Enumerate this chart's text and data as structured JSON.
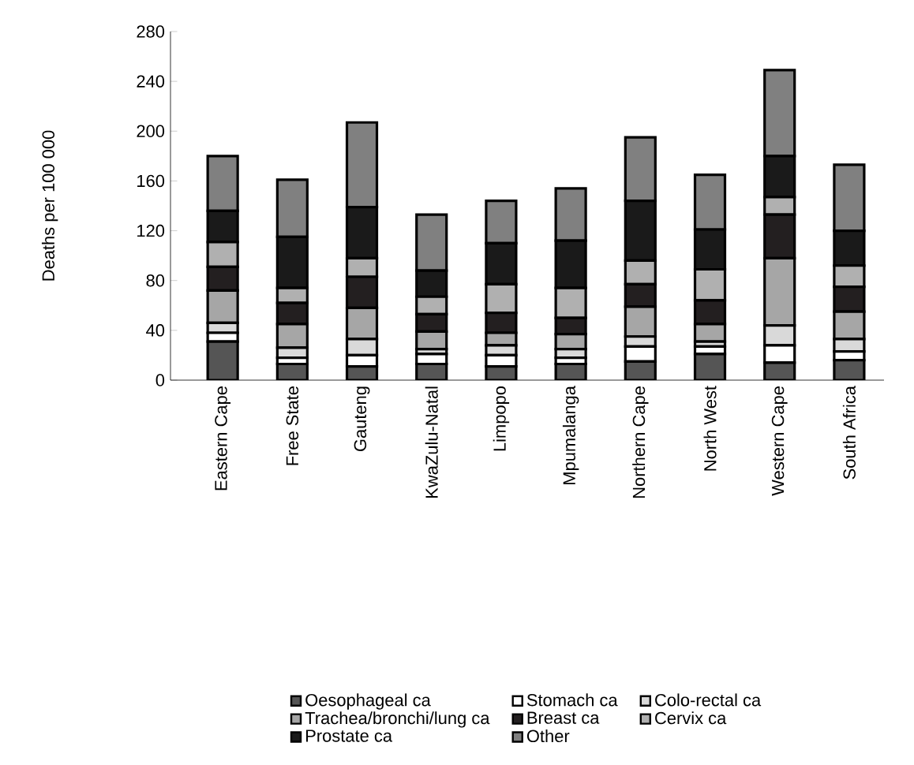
{
  "chart_data": {
    "type": "bar",
    "stacked": true,
    "ylabel": "Deaths per 100 000",
    "categories": [
      "Eastern Cape",
      "Free State",
      "Gauteng",
      "KwaZulu-Natal",
      "Limpopo",
      "Mpumalanga",
      "Northern Cape",
      "North West",
      "Western Cape",
      "South Africa"
    ],
    "series": [
      {
        "name": "Oesophageal ca",
        "color": "#555555",
        "values": [
          31,
          13,
          11,
          13,
          11,
          13,
          15,
          21,
          14,
          16
        ]
      },
      {
        "name": "Stomach ca",
        "color": "#ffffff",
        "values": [
          7,
          5,
          9,
          8,
          9,
          5,
          12,
          6,
          14,
          7
        ]
      },
      {
        "name": "Colo-rectal ca",
        "color": "#d9d9d9",
        "values": [
          8,
          8,
          13,
          4,
          8,
          7,
          8,
          4,
          16,
          10
        ]
      },
      {
        "name": "Trachea/bronchi/lung ca",
        "color": "#a6a6a6",
        "values": [
          26,
          19,
          25,
          14,
          10,
          12,
          24,
          14,
          54,
          22
        ]
      },
      {
        "name": "Breast ca",
        "color": "#231f20",
        "values": [
          19,
          17,
          25,
          14,
          16,
          13,
          18,
          19,
          35,
          20
        ]
      },
      {
        "name": "Cervix ca",
        "color": "#b0b0b0",
        "values": [
          20,
          12,
          15,
          14,
          23,
          24,
          19,
          25,
          14,
          17
        ]
      },
      {
        "name": "Prostate ca",
        "color": "#1a1a1a",
        "values": [
          25,
          41,
          41,
          21,
          33,
          38,
          48,
          32,
          33,
          28
        ]
      },
      {
        "name": "Other",
        "color": "#808080",
        "values": [
          44,
          46,
          68,
          45,
          34,
          42,
          51,
          44,
          69,
          53
        ]
      }
    ],
    "ylim": [
      0,
      280
    ],
    "yticks": [
      0,
      40,
      80,
      120,
      160,
      200,
      240,
      280
    ],
    "legend": "bottom",
    "grid": false
  }
}
